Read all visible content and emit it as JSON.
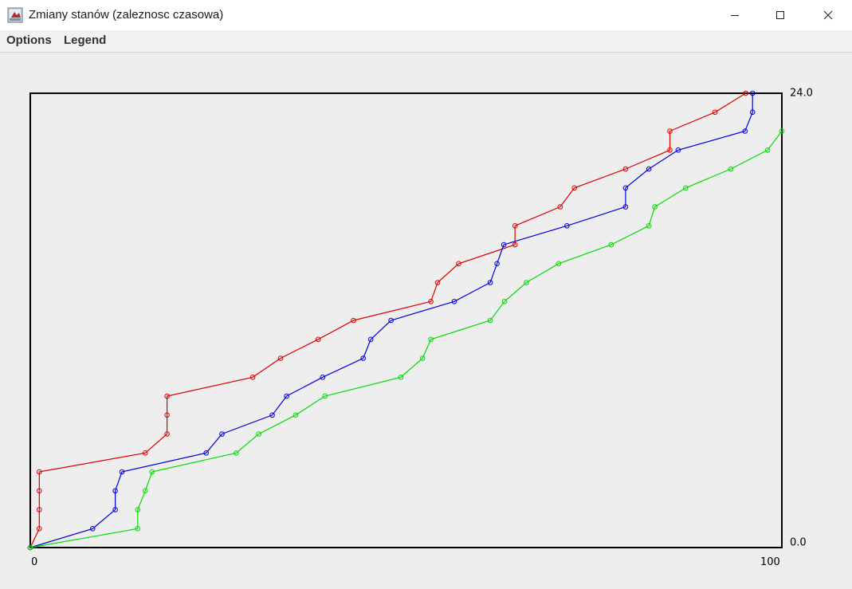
{
  "window": {
    "title": "Zmiany stanów (zaleznosc czasowa)",
    "icon": "java-app-icon",
    "controls": [
      "minimize-icon",
      "maximize-icon",
      "close-icon"
    ]
  },
  "menu": {
    "options_label": "Options",
    "legend_label": "Legend"
  },
  "chart_data": {
    "type": "line",
    "title": "",
    "xlabel": "",
    "ylabel": "",
    "xlim": [
      0,
      100
    ],
    "ylim": [
      0,
      24
    ],
    "x_tick_labels": [
      "0",
      "100"
    ],
    "y_tick_labels": [
      "0.0",
      "24.0"
    ],
    "y_axis_position": "right",
    "grid": false,
    "marker": "circle",
    "series": [
      {
        "color": "#dd0000",
        "points": [
          [
            0,
            0
          ],
          [
            1.2,
            1.0
          ],
          [
            1.2,
            2.0
          ],
          [
            1.2,
            3.0
          ],
          [
            1.2,
            4.0
          ],
          [
            15.3,
            5.0
          ],
          [
            18.2,
            6.0
          ],
          [
            18.2,
            7.0
          ],
          [
            18.2,
            8.0
          ],
          [
            29.6,
            9.0
          ],
          [
            33.3,
            10.0
          ],
          [
            38.3,
            11.0
          ],
          [
            43.0,
            12.0
          ],
          [
            53.3,
            13.0
          ],
          [
            54.2,
            14.0
          ],
          [
            57.0,
            15.0
          ],
          [
            64.5,
            16.0
          ],
          [
            64.5,
            17.0
          ],
          [
            70.5,
            18.0
          ],
          [
            72.4,
            19.0
          ],
          [
            79.2,
            20.0
          ],
          [
            85.1,
            21.0
          ],
          [
            85.1,
            22.0
          ],
          [
            91.1,
            23.0
          ],
          [
            95.2,
            24.0
          ]
        ]
      },
      {
        "color": "#0000dd",
        "points": [
          [
            0,
            0
          ],
          [
            8.3,
            1.0
          ],
          [
            11.3,
            2.0
          ],
          [
            11.3,
            3.0
          ],
          [
            12.2,
            4.0
          ],
          [
            23.4,
            5.0
          ],
          [
            25.5,
            6.0
          ],
          [
            32.2,
            7.0
          ],
          [
            34.1,
            8.0
          ],
          [
            38.9,
            9.0
          ],
          [
            44.3,
            10.0
          ],
          [
            45.3,
            11.0
          ],
          [
            48.0,
            12.0
          ],
          [
            56.4,
            13.0
          ],
          [
            61.2,
            14.0
          ],
          [
            62.1,
            15.0
          ],
          [
            63.0,
            16.0
          ],
          [
            71.4,
            17.0
          ],
          [
            79.2,
            18.0
          ],
          [
            79.2,
            19.0
          ],
          [
            82.3,
            20.0
          ],
          [
            86.2,
            21.0
          ],
          [
            95.1,
            22.0
          ],
          [
            96.1,
            23.0
          ],
          [
            96.1,
            24.0
          ]
        ]
      },
      {
        "color": "#00dd00",
        "points": [
          [
            0,
            0
          ],
          [
            14.3,
            1.0
          ],
          [
            14.3,
            2.0
          ],
          [
            15.3,
            3.0
          ],
          [
            16.2,
            4.0
          ],
          [
            27.4,
            5.0
          ],
          [
            30.4,
            6.0
          ],
          [
            35.3,
            7.0
          ],
          [
            39.2,
            8.0
          ],
          [
            49.3,
            9.0
          ],
          [
            52.2,
            10.0
          ],
          [
            53.3,
            11.0
          ],
          [
            61.2,
            12.0
          ],
          [
            63.1,
            13.0
          ],
          [
            66.0,
            14.0
          ],
          [
            70.3,
            15.0
          ],
          [
            77.3,
            16.0
          ],
          [
            82.3,
            17.0
          ],
          [
            83.1,
            18.0
          ],
          [
            87.2,
            19.0
          ],
          [
            93.2,
            20.0
          ],
          [
            98.1,
            21.0
          ],
          [
            100.0,
            22.0
          ]
        ]
      }
    ]
  }
}
